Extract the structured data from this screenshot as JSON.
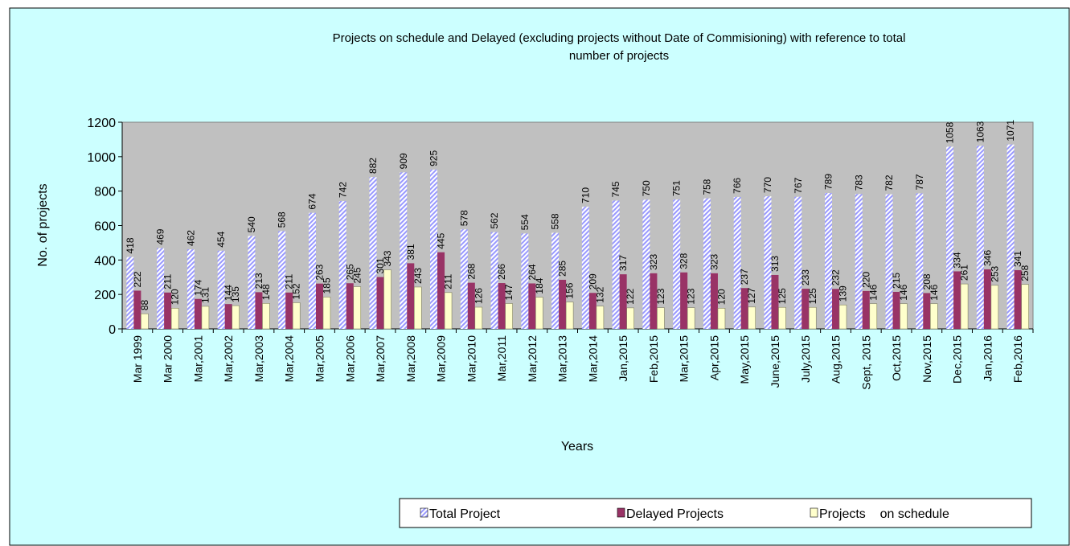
{
  "chart_data": {
    "type": "bar",
    "title": [
      "Projects on schedule and Delayed (excluding projects without Date of Commisioning) with reference to total",
      "number of projects"
    ],
    "x_label": "Years",
    "y_label": "No. of projects",
    "categories": [
      "Mar 1999",
      "Mar 2000",
      "Mar,2001",
      "Mar,2002",
      "Mar,2003",
      "Mar,2004",
      "Mar,2005",
      "Mar,2006",
      "Mar,2007",
      "Mar,2008",
      "Mar,2009",
      "Mar,2010",
      "Mar,2011",
      "Mar,2012",
      "Mar,2013",
      "Mar,2014",
      "Jan,2015",
      "Feb,2015",
      "Mar,2015",
      "Apr,2015",
      "May,2015",
      "June,2015",
      "July,2015",
      "Aug,2015",
      "Sept, 2015",
      "Oct,2015",
      "Nov,2015",
      "Dec,2015",
      "Jan,2016",
      "Feb,2016"
    ],
    "series": [
      {
        "name": "Total Project",
        "color": "#9999ff",
        "values": [
          418,
          469,
          462,
          454,
          540,
          568,
          674,
          742,
          882,
          909,
          925,
          578,
          562,
          554,
          558,
          710,
          745,
          750,
          751,
          758,
          766,
          770,
          767,
          789,
          783,
          782,
          787,
          1058,
          1063,
          1071
        ]
      },
      {
        "name": "Delayed Projects",
        "color": "#993366",
        "values": [
          222,
          211,
          174,
          144,
          213,
          211,
          263,
          265,
          301,
          381,
          445,
          268,
          266,
          264,
          285,
          209,
          317,
          323,
          328,
          323,
          237,
          313,
          233,
          232,
          220,
          215,
          208,
          334,
          346,
          341
        ]
      },
      {
        "name": "Projects    on schedule",
        "color": "#ffffcc",
        "values": [
          88,
          120,
          131,
          135,
          148,
          152,
          185,
          245,
          343,
          243,
          211,
          126,
          147,
          184,
          156,
          132,
          122,
          123,
          123,
          120,
          127,
          125,
          125,
          139,
          146,
          146,
          146,
          261,
          253,
          258
        ]
      }
    ],
    "ylim": [
      0,
      1200
    ],
    "yticks": [
      0,
      200,
      400,
      600,
      800,
      1000,
      1200
    ],
    "legend": "bottom",
    "plot_background": "#c0c0c0"
  }
}
